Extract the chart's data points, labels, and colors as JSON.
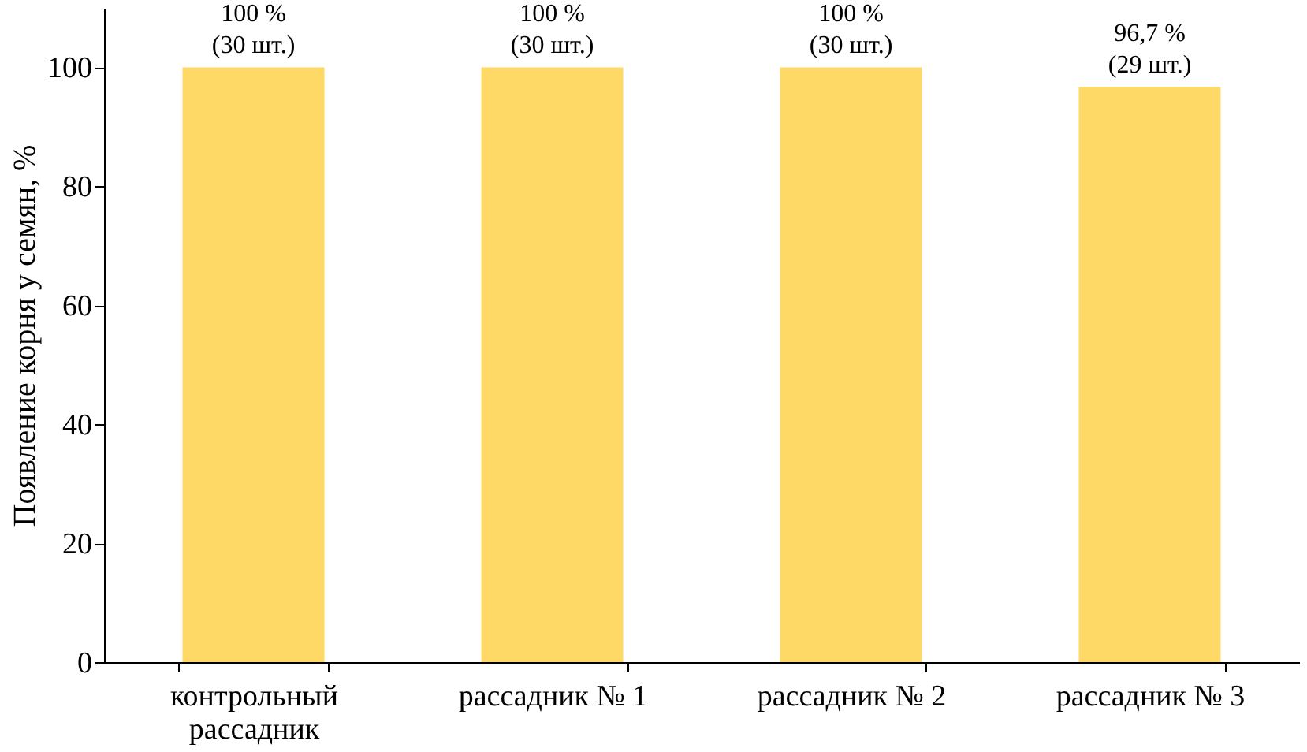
{
  "chart_data": {
    "type": "bar",
    "ylabel": "Появление корня у семян, %",
    "categories": [
      "контрольный рассадник",
      "рассадник № 1",
      "рассадник № 2",
      "рассадник № 3"
    ],
    "values": [
      100,
      100,
      100,
      96.7
    ],
    "value_labels": [
      "100 %\n(30 шт.)",
      "100 %\n(30 шт.)",
      "100 %\n(30 шт.)",
      "96,7 %\n(29 шт.)"
    ],
    "color": "#ffd966",
    "ylim": [
      0,
      110
    ],
    "yticks": [
      0,
      20,
      40,
      60,
      80,
      100
    ],
    "grid": false
  }
}
